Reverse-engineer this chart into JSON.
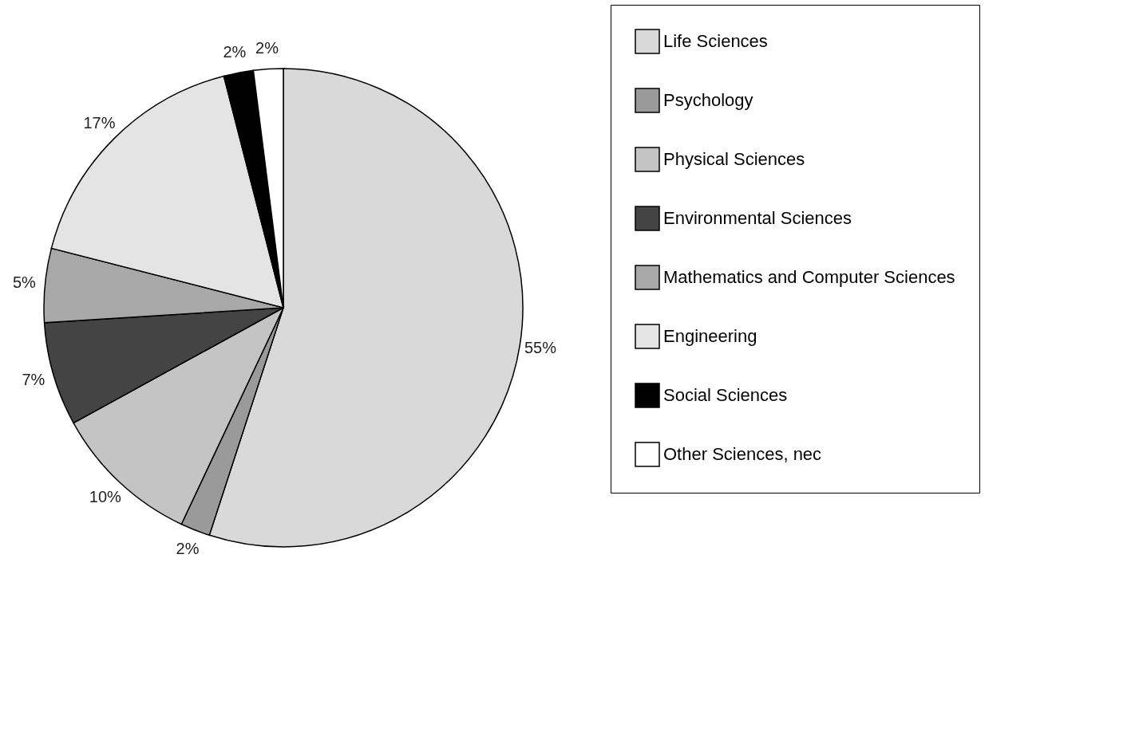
{
  "chart_data": {
    "type": "pie",
    "categories": [
      "Life Sciences",
      "Psychology",
      "Physical Sciences",
      "Environmental Sciences",
      "Mathematics and Computer Sciences",
      "Engineering",
      "Social Sciences",
      "Other Sciences, nec"
    ],
    "values": [
      55,
      2,
      10,
      7,
      5,
      17,
      2,
      2
    ],
    "value_labels": [
      "55%",
      "2%",
      "10%",
      "7%",
      "5%",
      "17%",
      "2%",
      "2%"
    ],
    "colors": [
      "#d9d9d9",
      "#9a9a9a",
      "#c4c4c4",
      "#444444",
      "#a8a8a8",
      "#e4e4e4",
      "#000000",
      "#ffffff"
    ],
    "legend": "right"
  }
}
